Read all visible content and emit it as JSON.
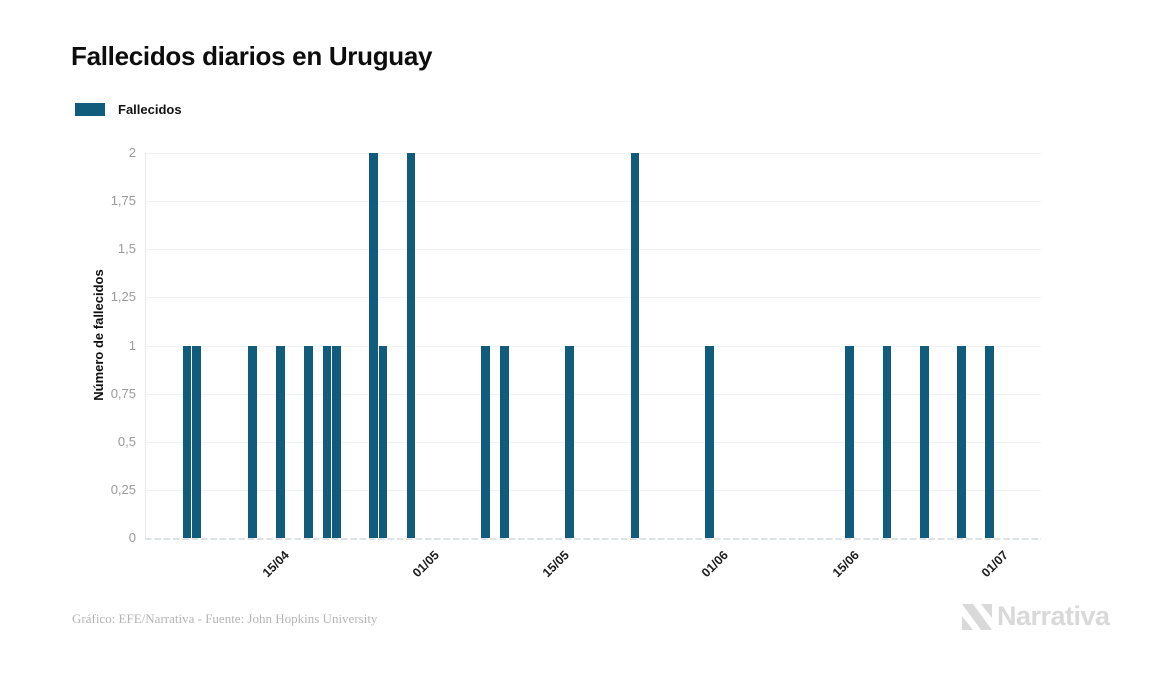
{
  "title": "Fallecidos diarios en Uruguay",
  "legend": {
    "label": "Fallecidos",
    "swatch_color": "#115b7d"
  },
  "footer": {
    "credit": "Gráfico: EFE/Narrativa - Fuente: John Hopkins University",
    "brand": "Narrativa"
  },
  "chart_data": {
    "type": "bar",
    "title": "Fallecidos diarios en Uruguay",
    "series_name": "Fallecidos",
    "bar_color": "#115b7d",
    "xlabel": "",
    "ylabel": "Número de fallecidos",
    "ylim": [
      0,
      2
    ],
    "grid": true,
    "legend_position": "top-left",
    "x_start": "01/04/2020",
    "x_end": "05/07/2020",
    "y_ticks": [
      {
        "label": "0",
        "value": 0
      },
      {
        "label": "0,25",
        "value": 0.25
      },
      {
        "label": "0,5",
        "value": 0.5
      },
      {
        "label": "0,75",
        "value": 0.75
      },
      {
        "label": "1",
        "value": 1
      },
      {
        "label": "1,25",
        "value": 1.25
      },
      {
        "label": "1,5",
        "value": 1.5
      },
      {
        "label": "1,75",
        "value": 1.75
      },
      {
        "label": "2",
        "value": 2
      }
    ],
    "x_ticks": [
      {
        "label": "15/04",
        "date": "15/04"
      },
      {
        "label": "01/05",
        "date": "01/05"
      },
      {
        "label": "15/05",
        "date": "15/05"
      },
      {
        "label": "01/06",
        "date": "01/06"
      },
      {
        "label": "15/06",
        "date": "15/06"
      },
      {
        "label": "01/07",
        "date": "01/07"
      }
    ],
    "points": [
      {
        "date": "05/04",
        "value": 1
      },
      {
        "date": "06/04",
        "value": 1
      },
      {
        "date": "12/04",
        "value": 1
      },
      {
        "date": "15/04",
        "value": 1
      },
      {
        "date": "18/04",
        "value": 1
      },
      {
        "date": "20/04",
        "value": 1
      },
      {
        "date": "21/04",
        "value": 1
      },
      {
        "date": "25/04",
        "value": 2
      },
      {
        "date": "26/04",
        "value": 1
      },
      {
        "date": "29/04",
        "value": 2
      },
      {
        "date": "07/05",
        "value": 1
      },
      {
        "date": "09/05",
        "value": 1
      },
      {
        "date": "16/05",
        "value": 1
      },
      {
        "date": "23/05",
        "value": 2
      },
      {
        "date": "31/05",
        "value": 1
      },
      {
        "date": "15/06",
        "value": 1
      },
      {
        "date": "19/06",
        "value": 1
      },
      {
        "date": "23/06",
        "value": 1
      },
      {
        "date": "27/06",
        "value": 1
      },
      {
        "date": "30/06",
        "value": 1
      }
    ]
  }
}
